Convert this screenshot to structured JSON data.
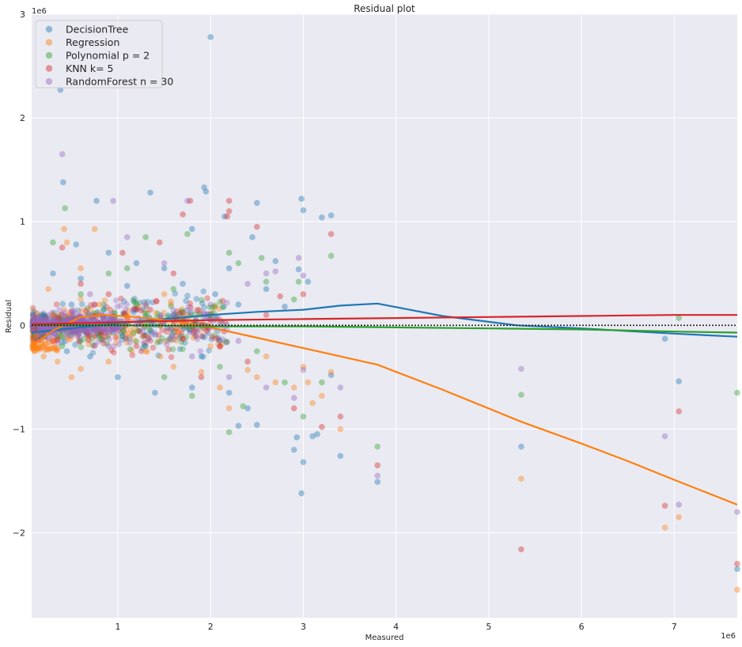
{
  "chart_data": {
    "type": "scatter",
    "title": "Residual plot",
    "xlabel": "Measured",
    "ylabel": "Residual",
    "x_offset_label": "1e6",
    "y_offset_label": "1e6",
    "xlim": [
      0.07,
      7.68
    ],
    "ylim": [
      -2.82,
      3.0
    ],
    "x_ticks": [
      1,
      2,
      3,
      4,
      5,
      6,
      7
    ],
    "y_ticks": [
      -2,
      -1,
      0,
      1,
      2,
      3
    ],
    "x_tick_labels": [
      "1",
      "2",
      "3",
      "4",
      "5",
      "6",
      "7"
    ],
    "y_tick_labels": [
      "−2",
      "−1",
      "0",
      "1",
      "2",
      "3"
    ],
    "grid": true,
    "legend_position": "top-left",
    "reference_line": {
      "y": 0,
      "style": "dotted",
      "color": "#222222"
    },
    "series": [
      {
        "name": "DecisionTree",
        "color": "#1f77b4",
        "points": [
          [
            0.38,
            2.27
          ],
          [
            2.0,
            2.78
          ],
          [
            0.41,
            1.38
          ],
          [
            1.35,
            1.28
          ],
          [
            0.77,
            1.2
          ],
          [
            1.93,
            1.33
          ],
          [
            1.95,
            1.29
          ],
          [
            2.15,
            1.05
          ],
          [
            2.5,
            1.18
          ],
          [
            2.98,
            1.22
          ],
          [
            3.0,
            1.11
          ],
          [
            3.2,
            1.04
          ],
          [
            3.3,
            1.06
          ],
          [
            2.45,
            0.85
          ],
          [
            1.8,
            0.93
          ],
          [
            0.55,
            0.78
          ],
          [
            0.9,
            0.7
          ],
          [
            1.2,
            0.6
          ],
          [
            1.5,
            0.55
          ],
          [
            2.2,
            0.55
          ],
          [
            2.7,
            0.62
          ],
          [
            2.95,
            0.54
          ],
          [
            3.05,
            0.42
          ],
          [
            2.6,
            0.35
          ],
          [
            0.3,
            0.5
          ],
          [
            0.6,
            0.45
          ],
          [
            1.1,
            0.38
          ],
          [
            1.7,
            0.4
          ],
          [
            2.05,
            0.3
          ],
          [
            2.3,
            0.2
          ],
          [
            2.8,
            0.18
          ],
          [
            3.3,
            -0.48
          ],
          [
            2.4,
            -0.8
          ],
          [
            2.3,
            -0.97
          ],
          [
            2.5,
            -0.96
          ],
          [
            2.2,
            -0.65
          ],
          [
            1.8,
            -0.6
          ],
          [
            1.4,
            -0.65
          ],
          [
            1.0,
            -0.5
          ],
          [
            2.9,
            -1.2
          ],
          [
            2.93,
            -1.08
          ],
          [
            3.1,
            -1.07
          ],
          [
            3.15,
            -1.05
          ],
          [
            3.0,
            -1.32
          ],
          [
            2.98,
            -1.62
          ],
          [
            3.4,
            -1.26
          ],
          [
            3.8,
            -1.51
          ],
          [
            5.35,
            -1.17
          ],
          [
            6.9,
            -0.13
          ],
          [
            7.05,
            -0.54
          ],
          [
            7.68,
            -2.35
          ],
          [
            0.2,
            0.1
          ],
          [
            0.5,
            0.2
          ],
          [
            0.7,
            -0.3
          ],
          [
            0.85,
            0.15
          ],
          [
            1.3,
            -0.2
          ],
          [
            1.6,
            0.1
          ],
          [
            1.9,
            -0.3
          ],
          [
            2.1,
            -0.15
          ],
          [
            0.45,
            -0.25
          ],
          [
            1.05,
            -0.1
          ]
        ],
        "trend": [
          [
            0.07,
            -0.07
          ],
          [
            0.5,
            -0.03
          ],
          [
            1.0,
            0.02
          ],
          [
            1.5,
            0.06
          ],
          [
            2.0,
            0.1
          ],
          [
            2.5,
            0.13
          ],
          [
            3.0,
            0.15
          ],
          [
            3.4,
            0.19
          ],
          [
            3.8,
            0.21
          ],
          [
            4.5,
            0.09
          ],
          [
            5.3,
            0.0
          ],
          [
            6.0,
            -0.03
          ],
          [
            7.0,
            -0.08
          ],
          [
            7.68,
            -0.11
          ]
        ]
      },
      {
        "name": "Regression",
        "color": "#ff7f0e",
        "points": [
          [
            0.42,
            0.93
          ],
          [
            0.75,
            0.93
          ],
          [
            0.45,
            0.8
          ],
          [
            0.6,
            0.55
          ],
          [
            0.25,
            0.35
          ],
          [
            0.15,
            -0.22
          ],
          [
            0.2,
            -0.3
          ],
          [
            0.1,
            -0.25
          ],
          [
            0.35,
            -0.35
          ],
          [
            0.6,
            -0.42
          ],
          [
            0.9,
            -0.35
          ],
          [
            1.3,
            -0.25
          ],
          [
            1.6,
            -0.4
          ],
          [
            1.9,
            -0.45
          ],
          [
            2.1,
            -0.6
          ],
          [
            2.2,
            -0.8
          ],
          [
            2.4,
            -0.43
          ],
          [
            2.5,
            -0.5
          ],
          [
            2.7,
            -0.55
          ],
          [
            2.9,
            -0.6
          ],
          [
            3.05,
            -0.55
          ],
          [
            3.1,
            -0.75
          ],
          [
            3.2,
            -0.68
          ],
          [
            3.3,
            -0.45
          ],
          [
            3.4,
            -1.0
          ],
          [
            3.0,
            -0.4
          ],
          [
            5.35,
            -1.48
          ],
          [
            6.9,
            -1.95
          ],
          [
            7.05,
            -1.85
          ],
          [
            7.68,
            -2.55
          ],
          [
            0.5,
            -0.5
          ],
          [
            0.8,
            0.2
          ],
          [
            1.1,
            0.1
          ],
          [
            1.5,
            0.3
          ],
          [
            2.0,
            -0.2
          ],
          [
            2.6,
            -0.3
          ],
          [
            0.3,
            0.1
          ],
          [
            0.12,
            -0.1
          ],
          [
            0.18,
            -0.18
          ]
        ],
        "trend": [
          [
            0.07,
            -0.2
          ],
          [
            0.3,
            -0.05
          ],
          [
            0.6,
            0.08
          ],
          [
            0.85,
            0.1
          ],
          [
            1.2,
            0.08
          ],
          [
            1.6,
            0.04
          ],
          [
            2.0,
            -0.02
          ],
          [
            2.5,
            -0.12
          ],
          [
            3.0,
            -0.22
          ],
          [
            3.4,
            -0.3
          ],
          [
            3.8,
            -0.38
          ],
          [
            4.5,
            -0.62
          ],
          [
            5.35,
            -0.93
          ],
          [
            6.0,
            -1.14
          ],
          [
            6.5,
            -1.31
          ],
          [
            7.0,
            -1.49
          ],
          [
            7.68,
            -1.73
          ]
        ]
      },
      {
        "name": "Polynomial p = 2",
        "color": "#2ca02c",
        "points": [
          [
            0.43,
            1.13
          ],
          [
            0.3,
            0.8
          ],
          [
            1.3,
            0.85
          ],
          [
            1.75,
            0.88
          ],
          [
            2.2,
            0.7
          ],
          [
            2.3,
            0.6
          ],
          [
            2.55,
            0.65
          ],
          [
            2.6,
            0.42
          ],
          [
            2.95,
            0.42
          ],
          [
            3.3,
            0.67
          ],
          [
            2.9,
            0.25
          ],
          [
            1.1,
            0.55
          ],
          [
            0.9,
            0.5
          ],
          [
            2.2,
            -1.03
          ],
          [
            2.35,
            -0.78
          ],
          [
            2.8,
            -0.55
          ],
          [
            3.0,
            -0.88
          ],
          [
            3.2,
            -0.55
          ],
          [
            3.8,
            -1.17
          ],
          [
            5.35,
            -0.67
          ],
          [
            7.05,
            0.07
          ],
          [
            7.68,
            -0.65
          ],
          [
            1.5,
            -0.5
          ],
          [
            1.8,
            -0.68
          ],
          [
            2.1,
            -0.4
          ],
          [
            0.6,
            0.3
          ],
          [
            0.4,
            -0.2
          ],
          [
            1.2,
            0.2
          ],
          [
            1.6,
            0.35
          ],
          [
            2.0,
            0.1
          ],
          [
            2.5,
            -0.25
          ],
          [
            0.8,
            -0.1
          ]
        ],
        "trend": [
          [
            0.07,
            0.0
          ],
          [
            1.0,
            0.0
          ],
          [
            2.0,
            -0.01
          ],
          [
            3.0,
            -0.01
          ],
          [
            4.0,
            -0.02
          ],
          [
            5.0,
            -0.03
          ],
          [
            6.0,
            -0.04
          ],
          [
            7.0,
            -0.06
          ],
          [
            7.68,
            -0.07
          ]
        ]
      },
      {
        "name": "KNN k= 5",
        "color": "#d62728",
        "points": [
          [
            0.4,
            0.75
          ],
          [
            1.05,
            0.7
          ],
          [
            1.45,
            0.8
          ],
          [
            1.7,
            1.07
          ],
          [
            1.78,
            1.2
          ],
          [
            2.2,
            1.2
          ],
          [
            2.18,
            1.05
          ],
          [
            2.2,
            1.1
          ],
          [
            2.5,
            0.95
          ],
          [
            3.3,
            0.88
          ],
          [
            3.0,
            0.3
          ],
          [
            2.75,
            0.28
          ],
          [
            1.6,
            0.5
          ],
          [
            2.9,
            -0.8
          ],
          [
            3.2,
            -0.98
          ],
          [
            3.4,
            -0.88
          ],
          [
            3.8,
            -1.35
          ],
          [
            5.35,
            -2.16
          ],
          [
            6.9,
            -1.74
          ],
          [
            7.05,
            -0.83
          ],
          [
            7.68,
            -2.3
          ],
          [
            0.6,
            0.4
          ],
          [
            0.9,
            0.3
          ],
          [
            1.2,
            -0.2
          ],
          [
            1.9,
            -0.5
          ],
          [
            2.1,
            -0.2
          ],
          [
            2.4,
            -0.35
          ],
          [
            0.3,
            -0.15
          ],
          [
            1.35,
            0.15
          ],
          [
            2.6,
            0.1
          ],
          [
            0.75,
            0.2
          ]
        ],
        "trend": [
          [
            0.07,
            0.01
          ],
          [
            1.0,
            0.03
          ],
          [
            2.0,
            0.05
          ],
          [
            3.0,
            0.06
          ],
          [
            4.0,
            0.07
          ],
          [
            5.0,
            0.08
          ],
          [
            6.0,
            0.09
          ],
          [
            7.0,
            0.1
          ],
          [
            7.68,
            0.1
          ]
        ]
      },
      {
        "name": "RandomForest n = 30",
        "color": "#9467bd",
        "points": [
          [
            0.4,
            1.65
          ],
          [
            0.95,
            1.2
          ],
          [
            1.75,
            1.2
          ],
          [
            1.1,
            0.85
          ],
          [
            1.5,
            0.6
          ],
          [
            2.6,
            0.5
          ],
          [
            2.7,
            0.52
          ],
          [
            2.95,
            0.65
          ],
          [
            3.0,
            0.48
          ],
          [
            2.4,
            0.4
          ],
          [
            3.4,
            -0.6
          ],
          [
            2.9,
            -0.7
          ],
          [
            3.0,
            -0.43
          ],
          [
            3.8,
            -1.45
          ],
          [
            5.35,
            -0.42
          ],
          [
            6.9,
            -1.07
          ],
          [
            7.05,
            -1.73
          ],
          [
            7.68,
            -1.8
          ],
          [
            2.2,
            -0.5
          ],
          [
            2.6,
            -0.6
          ],
          [
            1.3,
            0.2
          ],
          [
            0.7,
            0.3
          ],
          [
            0.5,
            -0.1
          ],
          [
            1.8,
            -0.3
          ],
          [
            2.0,
            0.2
          ],
          [
            2.3,
            -0.15
          ],
          [
            0.9,
            -0.2
          ],
          [
            1.6,
            0.1
          ]
        ],
        "trend": []
      }
    ]
  }
}
